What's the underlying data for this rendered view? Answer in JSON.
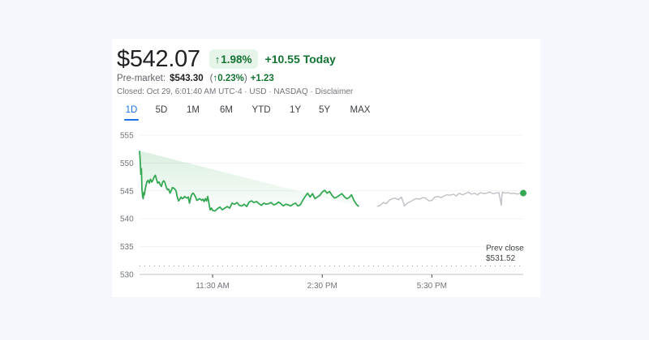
{
  "quote": {
    "price": "$542.07",
    "change_pct": "1.98%",
    "change_pct_arrow": "↑",
    "change_today": "+10.55 Today",
    "premarket_label": "Pre-market:",
    "premarket_price": "$543.30",
    "premarket_pct_open": "(",
    "premarket_pct_arrow": "↑",
    "premarket_pct": "0.23%",
    "premarket_pct_close": ")",
    "premarket_change": "+1.23",
    "closed_line": "Closed: Oct 29, 6:01:40 AM UTC-4 · USD · NASDAQ · Disclaimer"
  },
  "ranges": [
    {
      "label": "1D",
      "active": true
    },
    {
      "label": "5D",
      "active": false
    },
    {
      "label": "1M",
      "active": false
    },
    {
      "label": "6M",
      "active": false
    },
    {
      "label": "YTD",
      "active": false
    },
    {
      "label": "1Y",
      "active": false
    },
    {
      "label": "5Y",
      "active": false
    },
    {
      "label": "MAX",
      "active": false
    }
  ],
  "colors": {
    "up_green": "#137333",
    "line_green": "#34a853",
    "badge_bg": "#e6f4ea",
    "after_hours_gray": "#bdc1c6",
    "active_tab_blue": "#1a73e8",
    "page_bg": "#f5f7fc"
  },
  "chart_data": {
    "type": "line",
    "title": "",
    "xlabel": "",
    "ylabel": "",
    "ylim": [
      530,
      555
    ],
    "yticks": [
      555,
      550,
      545,
      540,
      535,
      530
    ],
    "xticks": [
      {
        "label": "11:30 AM",
        "minutes_from_open": 120
      },
      {
        "label": "2:30 PM",
        "minutes_from_open": 300
      },
      {
        "label": "5:30 PM",
        "minutes_from_open": 480
      }
    ],
    "x_range_minutes": [
      0,
      630
    ],
    "grid": true,
    "legend": "none",
    "previous_close": {
      "label": "Prev close",
      "value_label": "$531.52",
      "value": 531.52
    },
    "series": [
      {
        "name": "Regular session",
        "color": "#34a853",
        "area_fill": true,
        "x_minutes": [
          0,
          1,
          2,
          3,
          4,
          5,
          6,
          7,
          8,
          9,
          10,
          12,
          14,
          16,
          18,
          20,
          22,
          24,
          26,
          28,
          30,
          32,
          34,
          36,
          38,
          40,
          42,
          44,
          46,
          48,
          50,
          52,
          54,
          56,
          58,
          60,
          62,
          64,
          66,
          68,
          70,
          72,
          74,
          76,
          78,
          80,
          82,
          84,
          86,
          88,
          90,
          92,
          94,
          96,
          98,
          100,
          102,
          104,
          106,
          108,
          110,
          112,
          114,
          116,
          118,
          120,
          124,
          128,
          132,
          136,
          140,
          144,
          148,
          152,
          156,
          160,
          164,
          168,
          172,
          176,
          180,
          184,
          188,
          192,
          196,
          200,
          204,
          208,
          212,
          216,
          220,
          224,
          228,
          232,
          236,
          240,
          244,
          248,
          252,
          256,
          260,
          264,
          268,
          272,
          276,
          280,
          284,
          288,
          292,
          296,
          300,
          304,
          308,
          312,
          316,
          320,
          324,
          328,
          332,
          336,
          340,
          344,
          348,
          352,
          356,
          360,
          364,
          368,
          372,
          376,
          380,
          384,
          388,
          390
        ],
        "values": [
          552.2,
          550.5,
          548.0,
          549.0,
          545.2,
          544.0,
          543.6,
          544.7,
          544.3,
          545.2,
          545.6,
          546.6,
          546.9,
          546.4,
          547.1,
          546.6,
          546.9,
          547.5,
          547.8,
          547.0,
          546.4,
          546.6,
          546.1,
          545.8,
          546.6,
          546.8,
          546.4,
          545.6,
          545.2,
          545.3,
          544.6,
          545.0,
          545.6,
          545.5,
          545.3,
          545.0,
          543.9,
          543.2,
          543.5,
          543.9,
          543.6,
          543.7,
          544.0,
          543.8,
          543.7,
          543.9,
          542.8,
          543.8,
          544.4,
          544.6,
          544.3,
          543.9,
          543.3,
          543.4,
          543.6,
          543.5,
          543.3,
          543.5,
          543.1,
          543.6,
          543.2,
          544.0,
          542.7,
          541.6,
          541.9,
          541.5,
          541.4,
          541.8,
          542.1,
          541.6,
          541.9,
          542.2,
          541.9,
          542.8,
          542.6,
          542.9,
          542.4,
          542.3,
          542.6,
          542.2,
          543.0,
          543.2,
          542.9,
          543.1,
          542.7,
          542.4,
          542.8,
          542.6,
          542.7,
          542.9,
          542.5,
          542.6,
          543.0,
          542.7,
          542.3,
          542.6,
          542.5,
          542.3,
          542.6,
          542.8,
          542.3,
          542.5,
          543.3,
          544.0,
          544.6,
          543.9,
          544.5,
          543.6,
          543.9,
          544.2,
          544.8,
          545.1,
          544.6,
          544.9,
          544.2,
          543.7,
          543.9,
          544.2,
          544.5,
          544.0,
          543.6,
          543.8,
          544.3,
          543.3,
          542.6,
          542.2
        ]
      },
      {
        "name": "After hours",
        "color": "#bdc1c6",
        "area_fill": false,
        "x_minutes": [
          390,
          395,
          400,
          405,
          410,
          415,
          420,
          425,
          430,
          435,
          440,
          445,
          450,
          455,
          460,
          465,
          470,
          475,
          480,
          485,
          490,
          495,
          500,
          505,
          510,
          515,
          520,
          525,
          530,
          535,
          540,
          545,
          550,
          555,
          560,
          565,
          570,
          575,
          580,
          585,
          590,
          594,
          595,
          596,
          600,
          605,
          610,
          615,
          620,
          625,
          630
        ],
        "values": [
          542.2,
          542.4,
          542.9,
          542.7,
          543.3,
          543.6,
          543.7,
          543.4,
          543.9,
          542.3,
          542.8,
          543.1,
          543.4,
          543.6,
          543.5,
          543.8,
          543.7,
          543.2,
          543.3,
          543.9,
          544.0,
          543.8,
          544.1,
          544.3,
          544.2,
          544.4,
          544.1,
          544.6,
          544.3,
          544.5,
          544.8,
          544.4,
          544.6,
          544.3,
          544.7,
          544.5,
          544.6,
          544.8,
          544.5,
          544.6,
          544.7,
          542.4,
          544.2,
          544.8,
          544.6,
          544.7,
          544.5,
          544.6,
          544.4,
          544.6,
          544.7
        ]
      }
    ],
    "current_point": {
      "minutes_from_open": 630,
      "value": 544.6,
      "color": "#34a853"
    }
  }
}
